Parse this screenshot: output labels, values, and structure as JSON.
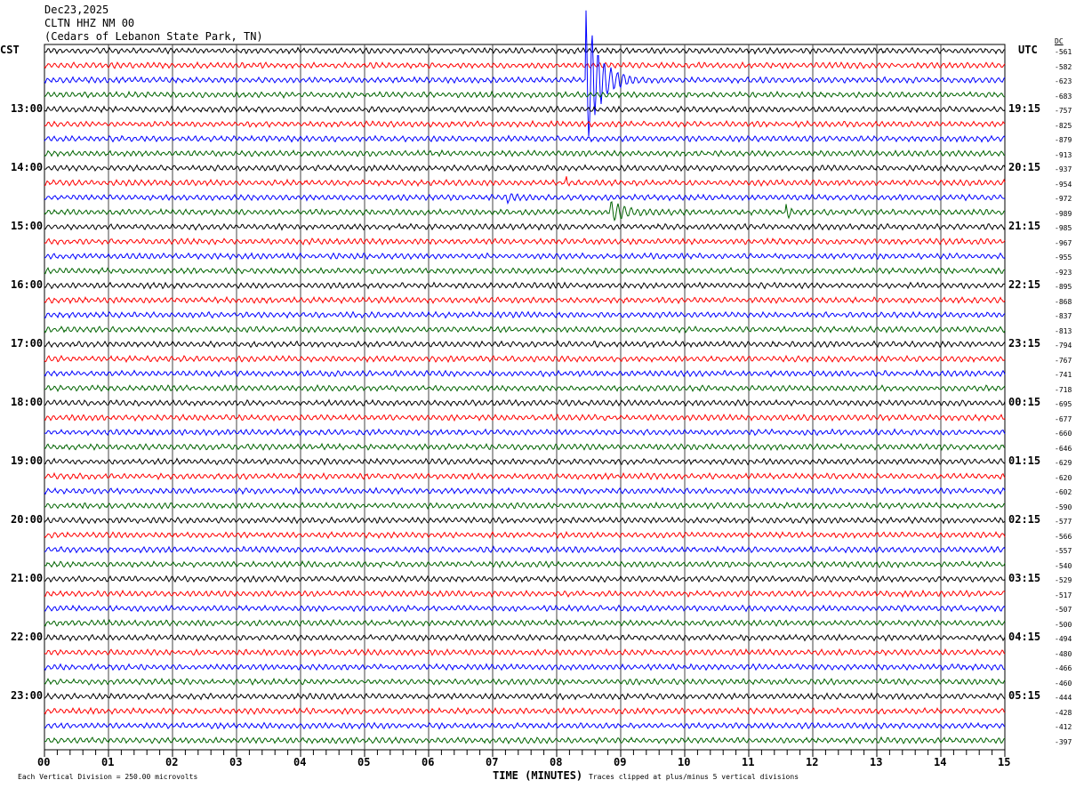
{
  "header": {
    "date": "Dec23,2025",
    "station": "CLTN HHZ NM 00",
    "location": "(Cedars of Lebanon State Park, TN)"
  },
  "left_tz": "CST",
  "right_tz": "UTC",
  "dc_label": "DC",
  "chart_data": {
    "type": "line",
    "title": "CLTN HHZ NM 00 helicorder",
    "xlabel": "TIME (MINUTES)",
    "xlim": [
      0,
      15
    ],
    "x_ticks": [
      "00",
      "01",
      "02",
      "03",
      "04",
      "05",
      "06",
      "07",
      "08",
      "09",
      "10",
      "11",
      "12",
      "13",
      "14",
      "15"
    ],
    "rows": 48,
    "row_colors": [
      "#000000",
      "#ff0000",
      "#0000ff",
      "#006400"
    ],
    "left_hour_labels": [
      {
        "row": 4,
        "label": "13:00"
      },
      {
        "row": 8,
        "label": "14:00"
      },
      {
        "row": 12,
        "label": "15:00"
      },
      {
        "row": 16,
        "label": "16:00"
      },
      {
        "row": 20,
        "label": "17:00"
      },
      {
        "row": 24,
        "label": "18:00"
      },
      {
        "row": 28,
        "label": "19:00"
      },
      {
        "row": 32,
        "label": "20:00"
      },
      {
        "row": 36,
        "label": "21:00"
      },
      {
        "row": 40,
        "label": "22:00"
      },
      {
        "row": 44,
        "label": "23:00"
      }
    ],
    "right_hour_labels": [
      {
        "row": 4,
        "label": "19:15"
      },
      {
        "row": 8,
        "label": "20:15"
      },
      {
        "row": 12,
        "label": "21:15"
      },
      {
        "row": 16,
        "label": "22:15"
      },
      {
        "row": 20,
        "label": "23:15"
      },
      {
        "row": 24,
        "label": "00:15"
      },
      {
        "row": 28,
        "label": "01:15"
      },
      {
        "row": 32,
        "label": "02:15"
      },
      {
        "row": 36,
        "label": "03:15"
      },
      {
        "row": 40,
        "label": "04:15"
      },
      {
        "row": 44,
        "label": "05:15"
      }
    ],
    "dc_offsets": [
      "-561",
      "-582",
      "-623",
      "-683",
      "-757",
      "-825",
      "-879",
      "-913",
      "-937",
      "-954",
      "-972",
      "-989",
      "-985",
      "-967",
      "-955",
      "-923",
      "-895",
      "-868",
      "-837",
      "-813",
      "-794",
      "-767",
      "-741",
      "-718",
      "-695",
      "-677",
      "-660",
      "-646",
      "-629",
      "-620",
      "-602",
      "-590",
      "-577",
      "-566",
      "-557",
      "-540",
      "-529",
      "-517",
      "-507",
      "-500",
      "-494",
      "-480",
      "-466",
      "-460",
      "-444",
      "-428",
      "-412",
      "-397"
    ],
    "events": [
      {
        "row": 2,
        "minute": 8.45,
        "amplitude_divisions": 10,
        "duration": 1.0
      },
      {
        "row": 9,
        "minute": 8.15,
        "amplitude_divisions": 1.5,
        "duration": 0.05
      },
      {
        "row": 10,
        "minute": 7.2,
        "amplitude_divisions": 0.6,
        "duration": 0.5
      },
      {
        "row": 11,
        "minute": 8.82,
        "amplitude_divisions": 1.6,
        "duration": 1.0
      },
      {
        "row": 11,
        "minute": 11.58,
        "amplitude_divisions": 1.0,
        "duration": 0.3
      }
    ],
    "footer_scale": "Each Vertical Division =  250.00 microvolts",
    "footer_clip": "Traces clipped at plus/minus 5 vertical divisions"
  }
}
